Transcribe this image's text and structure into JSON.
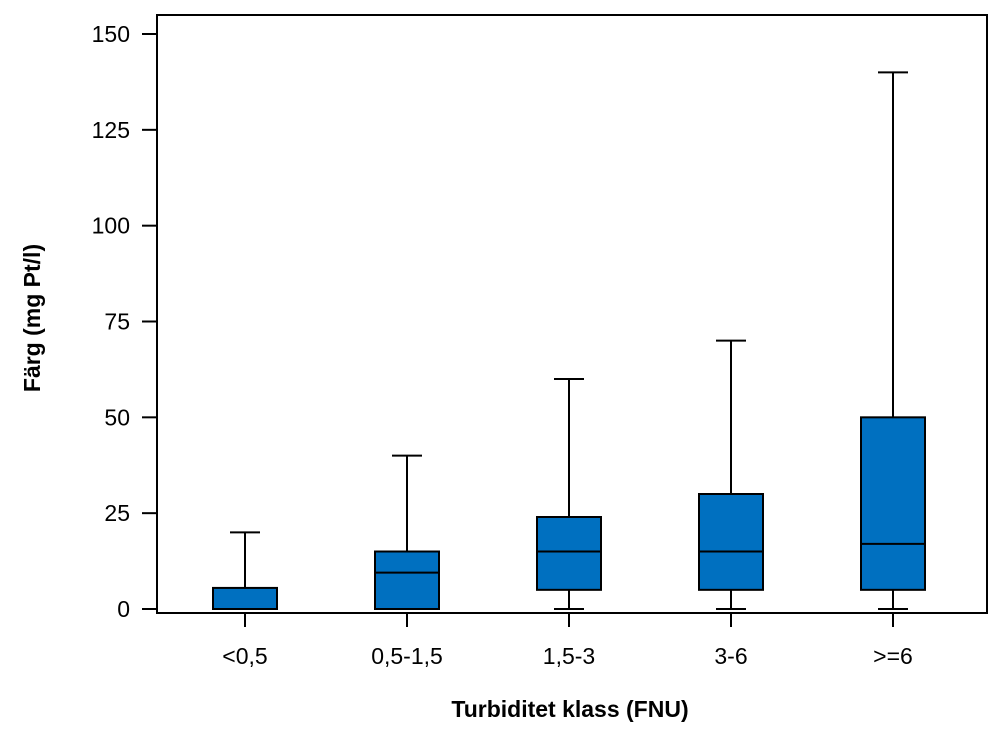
{
  "chart_data": {
    "type": "box",
    "xlabel": "Turbiditet klass (FNU)",
    "ylabel": "Färg (mg Pt/l)",
    "ylim": [
      0,
      150
    ],
    "yticks": [
      "0",
      "25",
      "50",
      "75",
      "100",
      "125",
      "150"
    ],
    "categories": [
      "<0,5",
      "0,5-1,5",
      "1,5-3",
      "3-6",
      ">=6"
    ],
    "boxes": [
      {
        "category": "<0,5",
        "min": 0,
        "q1": 0,
        "median": 0,
        "q3": 5.5,
        "max": 20
      },
      {
        "category": "0,5-1,5",
        "min": 0,
        "q1": 0,
        "median": 9.5,
        "q3": 15,
        "max": 40
      },
      {
        "category": "1,5-3",
        "min": 0,
        "q1": 5,
        "median": 15,
        "q3": 24,
        "max": 60
      },
      {
        "category": "3-6",
        "min": 0,
        "q1": 5,
        "median": 15,
        "q3": 30,
        "max": 70
      },
      {
        "category": ">=6",
        "min": 0,
        "q1": 5,
        "median": 17,
        "q3": 50,
        "max": 140
      }
    ],
    "grid": false,
    "legend": "none",
    "colors": {
      "box_fill": "#0070c0",
      "stroke": "#000000"
    }
  }
}
